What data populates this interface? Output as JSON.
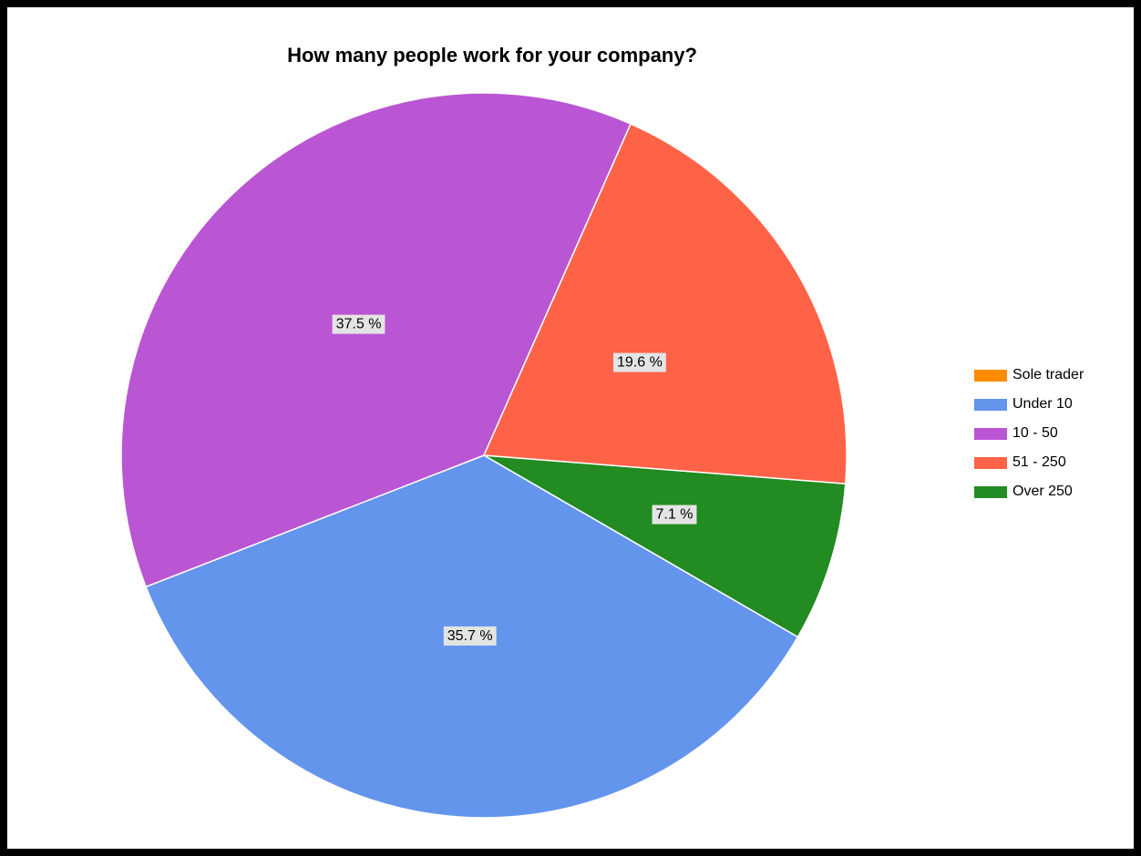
{
  "chart_data": {
    "type": "pie",
    "title": "How many people work for your company?",
    "legend_position": "right",
    "slices": [
      {
        "label": "Sole trader",
        "value": 0,
        "display": "",
        "color": "#FF8C00"
      },
      {
        "label": "Under 10",
        "value": 35.7,
        "display": "35.7 %",
        "color": "#6495ED"
      },
      {
        "label": "10 - 50",
        "value": 37.5,
        "display": "37.5 %",
        "color": "#BA55D3"
      },
      {
        "label": "51 - 250",
        "value": 19.6,
        "display": "19.6 %",
        "color": "#FF6347"
      },
      {
        "label": "Over 250",
        "value": 7.1,
        "display": "7.1 %",
        "color": "#228B22"
      }
    ]
  }
}
